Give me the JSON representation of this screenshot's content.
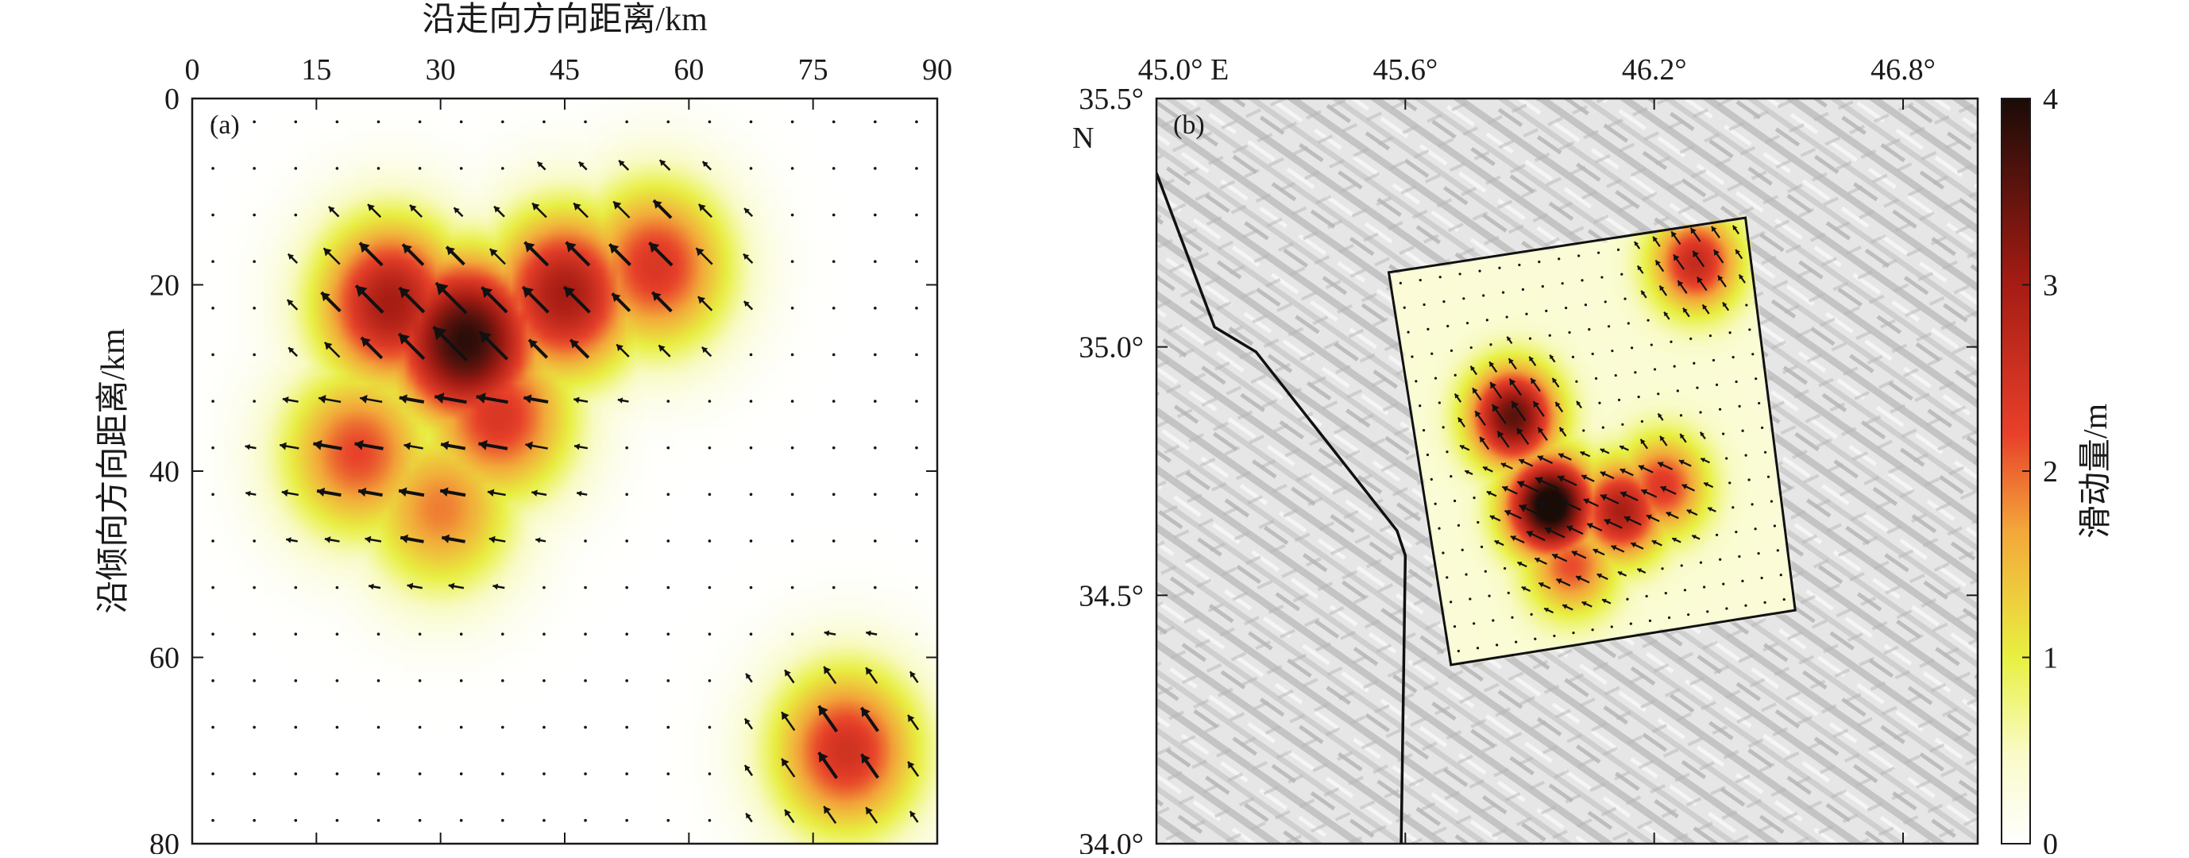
{
  "chart_data": [
    {
      "type": "heatmap",
      "panel_label": "(a)",
      "xlabel": "沿走向方向距离/km",
      "ylabel": "沿倾向方向距离/km",
      "xlim": [
        0,
        90
      ],
      "ylim": [
        0,
        80
      ],
      "x_axis_position": "top",
      "y_axis_reversed": true,
      "x_ticks": [
        "0",
        "15",
        "30",
        "45",
        "60",
        "75",
        "90"
      ],
      "y_ticks": [
        "0",
        "20",
        "40",
        "60",
        "80"
      ],
      "slip_patches": [
        {
          "x": 33,
          "y": 26,
          "peak_slip_m": 3.9
        },
        {
          "x": 24,
          "y": 22,
          "peak_slip_m": 3.0
        },
        {
          "x": 45,
          "y": 21,
          "peak_slip_m": 3.0
        },
        {
          "x": 56,
          "y": 18,
          "peak_slip_m": 2.4
        },
        {
          "x": 20,
          "y": 38,
          "peak_slip_m": 2.2
        },
        {
          "x": 30,
          "y": 44,
          "peak_slip_m": 1.9
        },
        {
          "x": 37,
          "y": 34,
          "peak_slip_m": 2.4
        },
        {
          "x": 79,
          "y": 70,
          "peak_slip_m": 2.5
        }
      ],
      "rake_note": "arrows point up-left (reverse slip) in the upper patch, left in the middle patch",
      "arrow_grid_spacing_km": [
        5,
        5
      ]
    },
    {
      "type": "heatmap",
      "panel_label": "(b)",
      "map_projection": "geographic",
      "x_ticks": [
        "45.0° E",
        "45.6°",
        "46.2°",
        "46.8°"
      ],
      "y_ticks": [
        "35.5° N",
        "35.0°",
        "34.5°",
        "34.0°"
      ],
      "lon_range": [
        45.0,
        46.98
      ],
      "lat_range": [
        34.0,
        35.5
      ],
      "fault_plane_corners_lonlat": [
        [
          45.56,
          35.15
        ],
        [
          46.42,
          35.26
        ],
        [
          46.54,
          34.47
        ],
        [
          45.71,
          34.36
        ]
      ],
      "slip_patches_lonlat": [
        {
          "lon": 45.95,
          "lat": 34.68,
          "peak_slip_m": 4.0
        },
        {
          "lon": 45.86,
          "lat": 34.86,
          "peak_slip_m": 3.2
        },
        {
          "lon": 46.12,
          "lat": 34.67,
          "peak_slip_m": 2.6
        },
        {
          "lon": 46.22,
          "lat": 34.72,
          "peak_slip_m": 2.0
        },
        {
          "lon": 46.3,
          "lat": 35.17,
          "peak_slip_m": 2.3
        },
        {
          "lon": 46.0,
          "lat": 34.56,
          "peak_slip_m": 1.8
        }
      ],
      "boundary_line_lonlat": [
        [
          45.0,
          35.35
        ],
        [
          45.14,
          35.04
        ],
        [
          45.24,
          34.99
        ],
        [
          45.58,
          34.63
        ],
        [
          45.6,
          34.58
        ],
        [
          45.59,
          34.0
        ]
      ]
    }
  ],
  "colorbar": {
    "label": "滑动量/m",
    "range": [
      0,
      4
    ],
    "ticks": [
      "0",
      "1",
      "2",
      "3",
      "4"
    ],
    "colors": [
      "#ffffff",
      "#e8f040",
      "#f3a73a",
      "#e8402a",
      "#a61c14",
      "#1a0b07"
    ]
  }
}
